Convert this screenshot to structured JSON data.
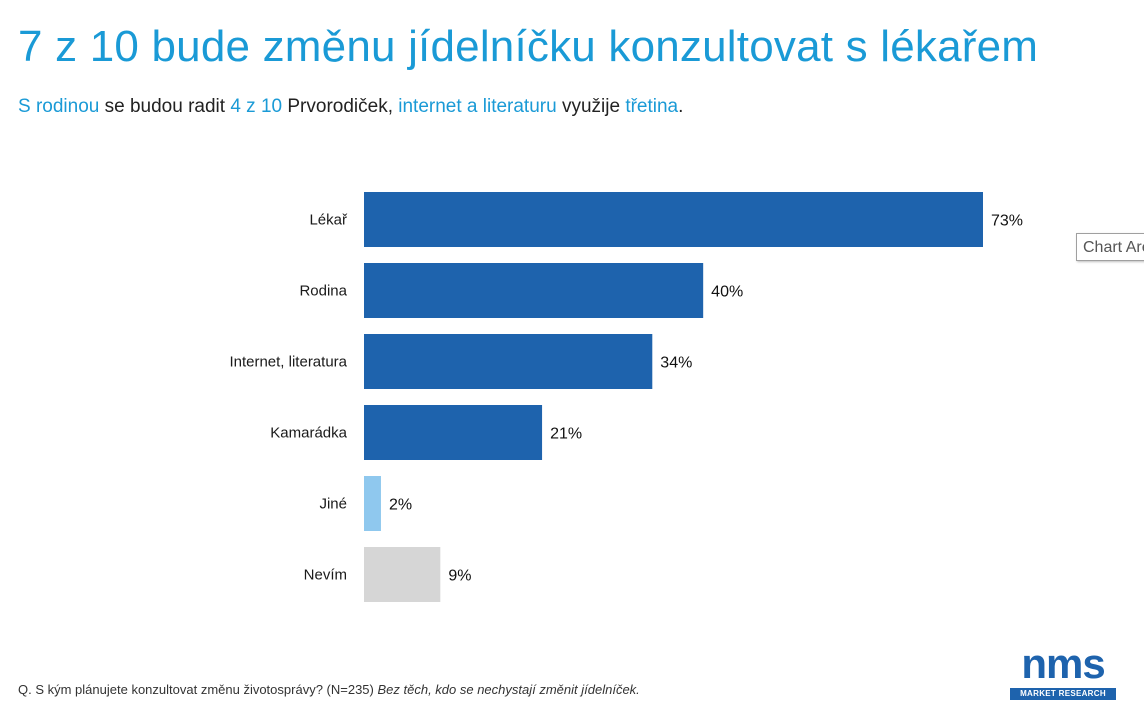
{
  "title": "7 z 10 bude změnu jídelníčku konzultovat s lékařem",
  "subtitle": {
    "p1": "S rodinou",
    "p2": " se budou radit ",
    "p3": "4 z 10",
    "p4": " Prvorodiček, ",
    "p5": "internet a literaturu",
    "p6": " využije ",
    "p7": "třetina",
    "p8": "."
  },
  "tooltip": "Chart Area",
  "footnote": {
    "question": "Q. S kým plánujete konzultovat změnu životosprávy? (N=235) ",
    "note": "Bez těch, kdo se nechystají změnit jídelníček."
  },
  "logo": {
    "text": "nms",
    "tagline": "MARKET RESEARCH"
  },
  "colors": {
    "accent": "#1a9ad6",
    "bar": "#1e63ad",
    "other": "#8fc8ee",
    "dontknow": "#d6d6d6"
  },
  "chart_data": {
    "type": "bar",
    "orientation": "horizontal",
    "categories": [
      "Lékař",
      "Rodina",
      "Internet, literatura",
      "Kamarádka",
      "Jiné",
      "Nevím"
    ],
    "values": [
      73,
      40,
      34,
      21,
      2,
      9
    ],
    "value_labels": [
      "73%",
      "40%",
      "34%",
      "21%",
      "2%",
      "9%"
    ],
    "bar_colors": [
      "#1e63ad",
      "#1e63ad",
      "#1e63ad",
      "#1e63ad",
      "#8fc8ee",
      "#d6d6d6"
    ],
    "unit": "%",
    "xlim": [
      0,
      73
    ],
    "grid": false,
    "legend": "none"
  }
}
